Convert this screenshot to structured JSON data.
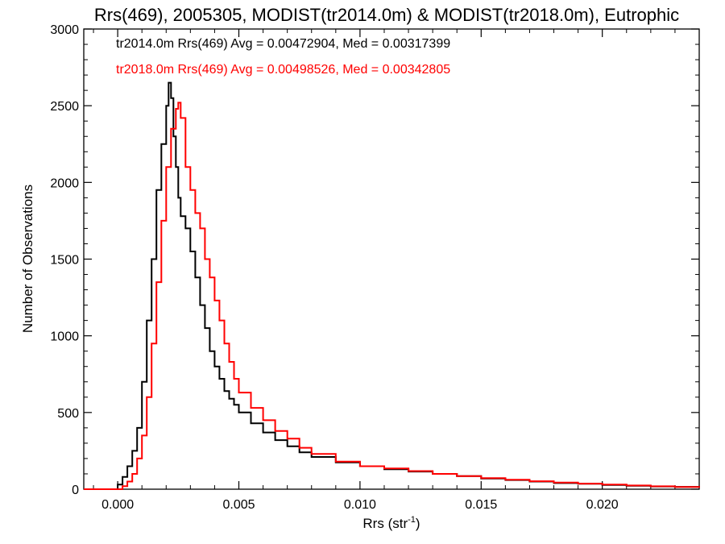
{
  "chart_data": {
    "type": "line",
    "title": "Rrs(469), 2005305, MODIST(tr2014.0m) & MODIST(tr2018.0m), Eutrophic",
    "xlabel": "Rrs (str",
    "xlabel_sup": "-1",
    "xlabel_end": ")",
    "ylabel": "Number of Observations",
    "xlim": [
      -0.0014,
      0.024
    ],
    "ylim": [
      0,
      3000
    ],
    "xticks": [
      0.0,
      0.005,
      0.01,
      0.015,
      0.02
    ],
    "xtick_labels": [
      "0.000",
      "0.005",
      "0.010",
      "0.015",
      "0.020"
    ],
    "yticks": [
      0,
      500,
      1000,
      1500,
      2000,
      2500,
      3000
    ],
    "ytick_labels": [
      "0",
      "500",
      "1000",
      "1500",
      "2000",
      "2500",
      "3000"
    ],
    "grid": false,
    "annotations": [
      "tr2014.0m Rrs(469) Avg = 0.00472904, Med = 0.00317399",
      "tr2018.0m Rrs(469) Avg = 0.00498526, Med = 0.00342805"
    ],
    "series": [
      {
        "color": "#000000",
        "x": [
          -0.0014,
          -0.0004,
          0.0,
          0.0002,
          0.0004,
          0.0006,
          0.0008,
          0.001,
          0.0012,
          0.0014,
          0.0016,
          0.0018,
          0.002,
          0.0021,
          0.0022,
          0.0023,
          0.0024,
          0.0025,
          0.0026,
          0.0028,
          0.003,
          0.0032,
          0.0034,
          0.0036,
          0.0038,
          0.004,
          0.0042,
          0.0044,
          0.0046,
          0.0048,
          0.005,
          0.0055,
          0.006,
          0.0065,
          0.007,
          0.0075,
          0.008,
          0.009,
          0.01,
          0.011,
          0.012,
          0.013,
          0.014,
          0.015,
          0.016,
          0.017,
          0.018,
          0.019,
          0.02,
          0.021,
          0.022,
          0.023,
          0.024
        ],
        "y": [
          0,
          0,
          30,
          80,
          150,
          250,
          400,
          700,
          1100,
          1500,
          1950,
          2250,
          2500,
          2650,
          2550,
          2300,
          2100,
          1900,
          1780,
          1700,
          1550,
          1380,
          1200,
          1050,
          900,
          800,
          720,
          640,
          590,
          550,
          500,
          430,
          370,
          320,
          280,
          240,
          210,
          175,
          150,
          130,
          115,
          100,
          85,
          70,
          60,
          50,
          40,
          35,
          28,
          22,
          18,
          15,
          10
        ]
      },
      {
        "color": "#ff0000",
        "x": [
          -0.0014,
          -0.0002,
          0.0002,
          0.0004,
          0.0006,
          0.0008,
          0.001,
          0.0012,
          0.0014,
          0.0016,
          0.0018,
          0.002,
          0.0022,
          0.0024,
          0.0025,
          0.0026,
          0.0028,
          0.003,
          0.0032,
          0.0034,
          0.0036,
          0.0038,
          0.004,
          0.0042,
          0.0044,
          0.0046,
          0.0048,
          0.005,
          0.0055,
          0.006,
          0.0065,
          0.007,
          0.0075,
          0.008,
          0.009,
          0.01,
          0.011,
          0.012,
          0.013,
          0.014,
          0.015,
          0.016,
          0.017,
          0.018,
          0.019,
          0.02,
          0.021,
          0.022,
          0.023,
          0.024
        ],
        "y": [
          0,
          0,
          20,
          50,
          100,
          200,
          350,
          600,
          950,
          1350,
          1750,
          2100,
          2350,
          2480,
          2520,
          2420,
          2100,
          1950,
          1800,
          1700,
          1500,
          1380,
          1230,
          1100,
          950,
          830,
          720,
          630,
          530,
          450,
          380,
          330,
          270,
          230,
          180,
          150,
          135,
          118,
          100,
          85,
          72,
          62,
          52,
          43,
          36,
          30,
          24,
          19,
          14,
          10
        ]
      }
    ]
  }
}
